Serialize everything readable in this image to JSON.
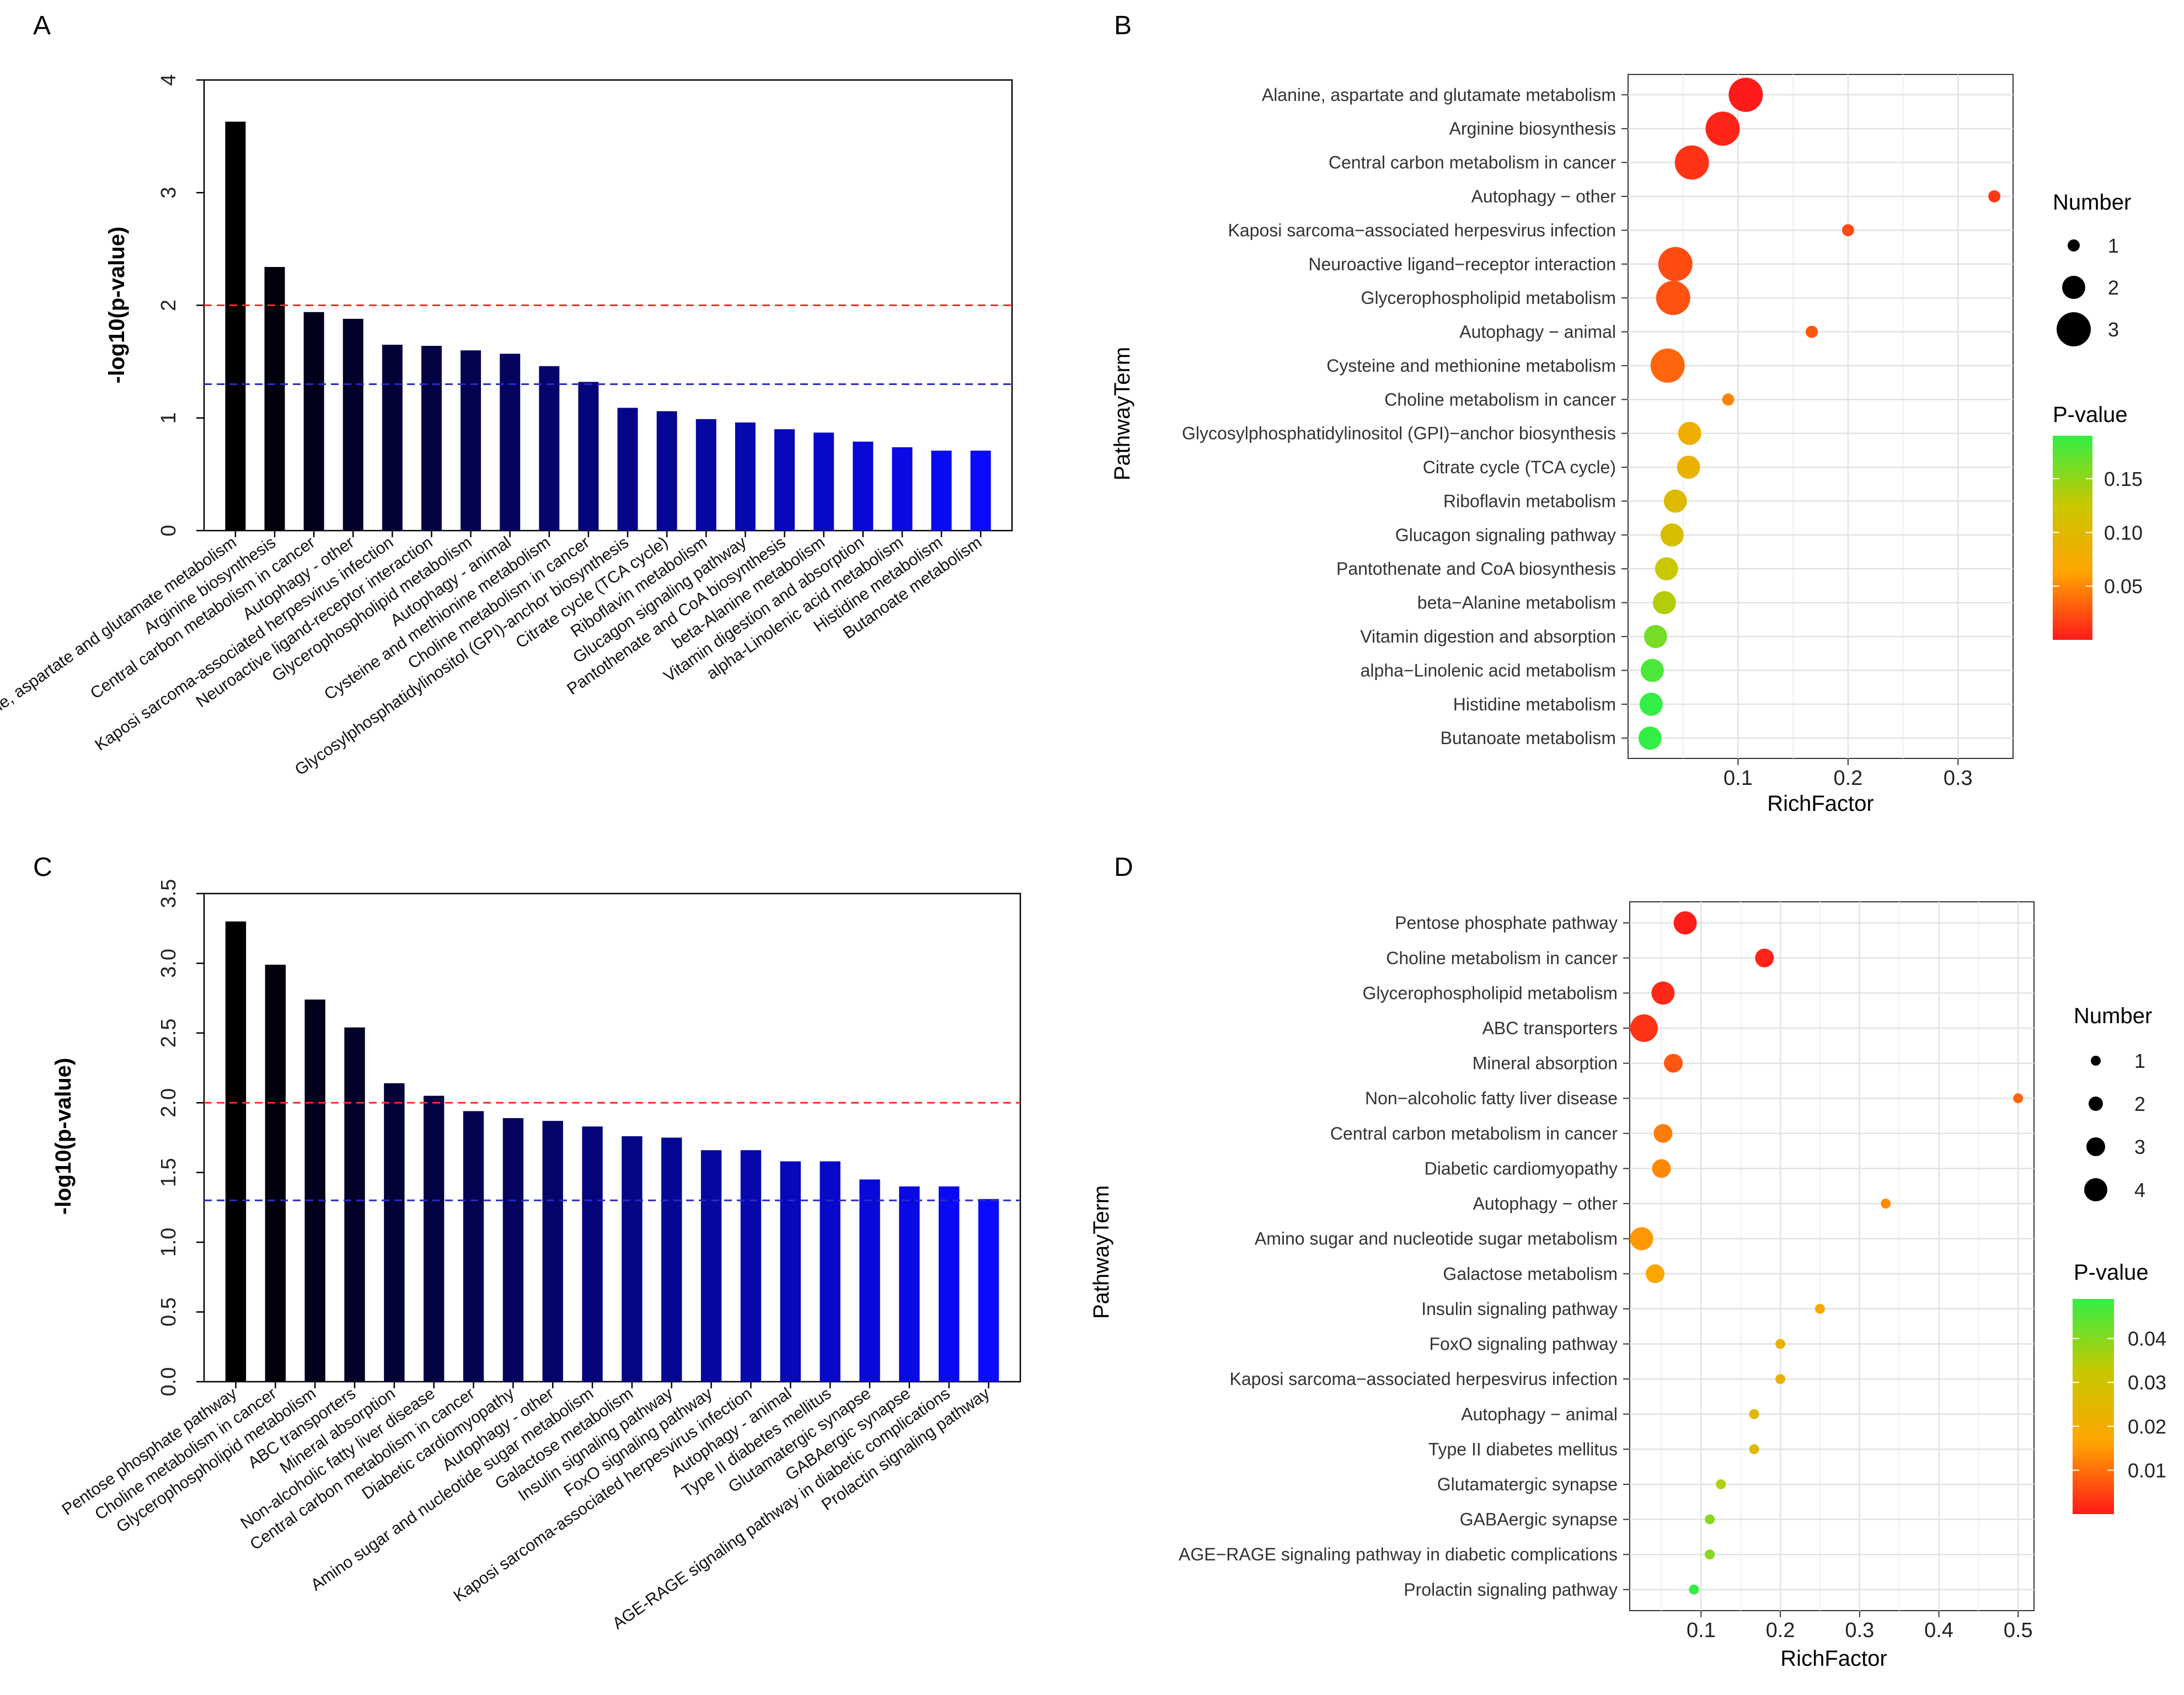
{
  "chart_data": [
    {
      "panel": "A",
      "type": "bar",
      "ylabel": "-log10(p-value)",
      "ylim": [
        0,
        4
      ],
      "yticks": [
        0,
        1,
        2,
        3,
        4
      ],
      "ytick_labels": [
        "0",
        "1",
        "2",
        "3",
        "4"
      ],
      "reference_lines": [
        {
          "y": 2.0,
          "color": "#ff2a2a"
        },
        {
          "y": 1.3,
          "color": "#2a2acc"
        }
      ],
      "categories": [
        "Alanine, aspartate and glutamate metabolism",
        "Arginine biosynthesis",
        "Central carbon metabolism in cancer",
        "Autophagy - other",
        "Kaposi sarcoma-associated herpesvirus infection",
        "Neuroactive ligand-receptor interaction",
        "Glycerophospholipid metabolism",
        "Autophagy - animal",
        "Cysteine and methionine metabolism",
        "Choline metabolism in cancer",
        "Glycosylphosphatidylinositol (GPI)-anchor biosynthesis",
        "Citrate cycle (TCA cycle)",
        "Riboflavin metabolism",
        "Glucagon signaling pathway",
        "Pantothenate and CoA biosynthesis",
        "beta-Alanine metabolism",
        "Vitamin digestion and absorption",
        "alpha-Linolenic acid metabolism",
        "Histidine metabolism",
        "Butanoate metabolism"
      ],
      "values": [
        3.63,
        2.34,
        1.94,
        1.88,
        1.65,
        1.64,
        1.6,
        1.57,
        1.46,
        1.32,
        1.09,
        1.06,
        0.99,
        0.96,
        0.9,
        0.87,
        0.79,
        0.74,
        0.71,
        0.71
      ]
    },
    {
      "panel": "B",
      "type": "scatter",
      "xlabel": "RichFactor",
      "ylabel": "PathwayTerm",
      "xlim": [
        0,
        0.35
      ],
      "xticks": [
        0.1,
        0.2,
        0.3
      ],
      "xtick_labels": [
        "0.1",
        "0.2",
        "0.3"
      ],
      "size_legend": {
        "title": "Number",
        "values": [
          1,
          2,
          3
        ],
        "labels": [
          "1",
          "2",
          "3"
        ]
      },
      "color_legend": {
        "title": "P-value",
        "min": 0.0,
        "max": 0.19,
        "ticks": [
          0.05,
          0.1,
          0.15
        ],
        "tick_labels": [
          "0.05",
          "0.10",
          "0.15"
        ],
        "colors": [
          "#ff1a1a",
          "#ffa500",
          "#c8c800",
          "#33ee44"
        ]
      },
      "terms": [
        "Alanine, aspartate and glutamate metabolism",
        "Arginine biosynthesis",
        "Central carbon metabolism in cancer",
        "Autophagy − other",
        "Kaposi sarcoma−associated herpesvirus infection",
        "Neuroactive ligand−receptor interaction",
        "Glycerophospholipid metabolism",
        "Autophagy − animal",
        "Cysteine and methionine metabolism",
        "Choline metabolism in cancer",
        "Glycosylphosphatidylinositol (GPI)−anchor biosynthesis",
        "Citrate cycle (TCA cycle)",
        "Riboflavin metabolism",
        "Glucagon signaling pathway",
        "Pantothenate and CoA biosynthesis",
        "beta−Alanine metabolism",
        "Vitamin digestion and absorption",
        "alpha−Linolenic acid metabolism",
        "Histidine metabolism",
        "Butanoate metabolism"
      ],
      "x": [
        0.107,
        0.086,
        0.058,
        0.333,
        0.2,
        0.043,
        0.041,
        0.167,
        0.036,
        0.091,
        0.056,
        0.055,
        0.043,
        0.04,
        0.035,
        0.033,
        0.025,
        0.022,
        0.021,
        0.02
      ],
      "number": [
        3,
        3,
        3,
        1,
        1,
        3,
        3,
        1,
        3,
        1,
        2,
        2,
        2,
        2,
        2,
        2,
        2,
        2,
        2,
        2
      ],
      "pvalue": [
        0.0002,
        0.0046,
        0.0115,
        0.0132,
        0.0224,
        0.0229,
        0.0251,
        0.027,
        0.0347,
        0.0479,
        0.081,
        0.087,
        0.102,
        0.11,
        0.126,
        0.135,
        0.162,
        0.18,
        0.195,
        0.195
      ]
    },
    {
      "panel": "C",
      "type": "bar",
      "ylabel": "-log10(p-value)",
      "ylim": [
        0,
        3.5
      ],
      "yticks": [
        0,
        0.5,
        1.0,
        1.5,
        2.0,
        2.5,
        3.0,
        3.5
      ],
      "ytick_labels": [
        "0.0",
        "0.5",
        "1.0",
        "1.5",
        "2.0",
        "2.5",
        "3.0",
        "3.5"
      ],
      "reference_lines": [
        {
          "y": 2.0,
          "color": "#ff2a2a"
        },
        {
          "y": 1.3,
          "color": "#2a2acc"
        }
      ],
      "categories": [
        "Pentose phosphate pathway",
        "Choline metabolism in cancer",
        "Glycerophospholipid metabolism",
        "ABC transporters",
        "Mineral absorption",
        "Non-alcoholic fatty liver disease",
        "Central carbon metabolism in cancer",
        "Diabetic cardiomyopathy",
        "Autophagy - other",
        "Amino sugar and nucleotide sugar metabolism",
        "Galactose metabolism",
        "Insulin signaling pathway",
        "FoxO signaling pathway",
        "Kaposi sarcoma-associated herpesvirus infection",
        "Autophagy - animal",
        "Type II diabetes mellitus",
        "Glutamatergic synapse",
        "GABAergic synapse",
        "AGE-RAGE signaling pathway in diabetic complications",
        "Prolactin signaling pathway"
      ],
      "values": [
        3.3,
        2.99,
        2.74,
        2.54,
        2.14,
        2.05,
        1.94,
        1.89,
        1.87,
        1.83,
        1.76,
        1.75,
        1.66,
        1.66,
        1.58,
        1.58,
        1.45,
        1.4,
        1.4,
        1.31
      ]
    },
    {
      "panel": "D",
      "type": "scatter",
      "xlabel": "RichFactor",
      "ylabel": "PathwayTerm",
      "xlim": [
        0.01,
        0.52
      ],
      "xticks": [
        0.1,
        0.2,
        0.3,
        0.4,
        0.5
      ],
      "xtick_labels": [
        "0.1",
        "0.2",
        "0.3",
        "0.4",
        "0.5"
      ],
      "size_legend": {
        "title": "Number",
        "values": [
          1,
          2,
          3,
          4
        ],
        "labels": [
          "1",
          "2",
          "3",
          "4"
        ]
      },
      "color_legend": {
        "title": "P-value",
        "min": 0.0,
        "max": 0.049,
        "ticks": [
          0.01,
          0.02,
          0.03,
          0.04
        ],
        "tick_labels": [
          "0.01",
          "0.02",
          "0.03",
          "0.04"
        ],
        "colors": [
          "#ff1a1a",
          "#ffa500",
          "#c8c800",
          "#33ee44"
        ]
      },
      "terms": [
        "Pentose phosphate pathway",
        "Choline metabolism in cancer",
        "Glycerophospholipid metabolism",
        "ABC transporters",
        "Mineral absorption",
        "Non−alcoholic fatty liver disease",
        "Central carbon metabolism in cancer",
        "Diabetic cardiomyopathy",
        "Autophagy − other",
        "Amino sugar and nucleotide sugar metabolism",
        "Galactose metabolism",
        "Insulin signaling pathway",
        "FoxO signaling pathway",
        "Kaposi sarcoma−associated herpesvirus infection",
        "Autophagy − animal",
        "Type II diabetes mellitus",
        "Glutamatergic synapse",
        "GABAergic synapse",
        "AGE−RAGE signaling pathway in diabetic complications",
        "Prolactin signaling pathway"
      ],
      "x": [
        0.08,
        0.18,
        0.052,
        0.028,
        0.065,
        0.5,
        0.052,
        0.05,
        0.333,
        0.025,
        0.042,
        0.25,
        0.2,
        0.2,
        0.167,
        0.167,
        0.125,
        0.111,
        0.111,
        0.091
      ],
      "number": [
        4,
        3,
        4,
        5,
        3,
        1,
        3,
        3,
        1,
        4,
        3,
        1,
        1,
        1,
        1,
        1,
        1,
        1,
        1,
        1
      ],
      "pvalue": [
        0.0005,
        0.001,
        0.0018,
        0.0029,
        0.0072,
        0.0089,
        0.0115,
        0.0129,
        0.0135,
        0.0148,
        0.0174,
        0.0178,
        0.0219,
        0.0219,
        0.0263,
        0.0263,
        0.0355,
        0.0398,
        0.0398,
        0.049
      ]
    }
  ]
}
